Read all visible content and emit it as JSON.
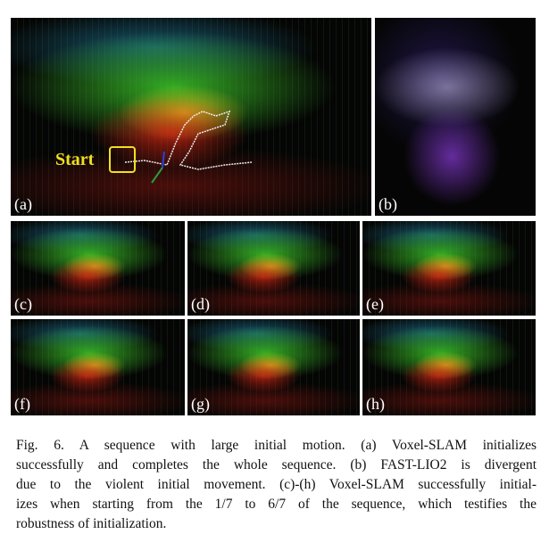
{
  "figure": {
    "panels": [
      {
        "label": "(a)"
      },
      {
        "label": "(b)"
      },
      {
        "label": "(c)"
      },
      {
        "label": "(d)"
      },
      {
        "label": "(e)"
      },
      {
        "label": "(f)"
      },
      {
        "label": "(g)"
      },
      {
        "label": "(h)"
      }
    ],
    "start_label": "Start",
    "caption_lines": [
      "Fig. 6.   A sequence with large initial motion. (a) Voxel-SLAM initializes",
      "successfully and completes the whole sequence. (b) FAST-LIO2 is divergent",
      "due to the violent initial movement. (c)-(h) Voxel-SLAM successfully initial-",
      "izes when starting from the 1/7 to 6/7 of the sequence, which testifies the",
      "robustness of initialization."
    ]
  }
}
